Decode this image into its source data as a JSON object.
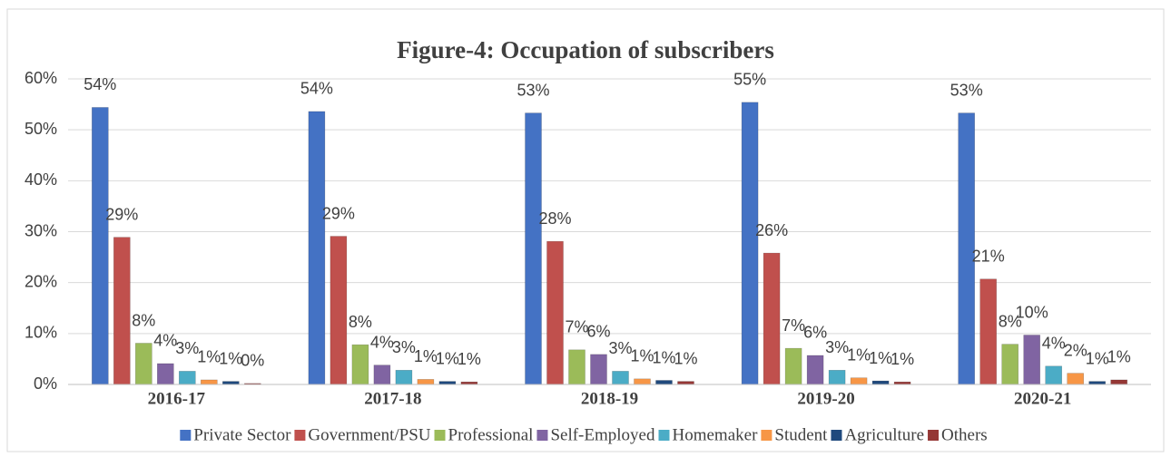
{
  "chart_data": {
    "type": "bar",
    "title": "Figure-4: Occupation of subscribers",
    "categories": [
      "2016-17",
      "2017-18",
      "2018-19",
      "2019-20",
      "2020-21"
    ],
    "series": [
      {
        "name": "Private Sector",
        "color": "#4472c4",
        "values": [
          54.4,
          53.6,
          53.3,
          55.4,
          53.3
        ],
        "value_labels": [
          "54%",
          "54%",
          "53%",
          "55%",
          "53%"
        ]
      },
      {
        "name": "Government/PSU",
        "color": "#c0504d",
        "values": [
          28.9,
          29.1,
          28.1,
          25.8,
          20.7
        ],
        "value_labels": [
          "29%",
          "29%",
          "28%",
          "26%",
          "21%"
        ]
      },
      {
        "name": "Professional",
        "color": "#9bbb59",
        "values": [
          8.1,
          7.8,
          6.8,
          7.1,
          7.9
        ],
        "value_labels": [
          "8%",
          "8%",
          "7%",
          "7%",
          "8%"
        ]
      },
      {
        "name": "Self-Employed",
        "color": "#8064a2",
        "values": [
          4.1,
          3.8,
          5.9,
          5.7,
          9.7
        ],
        "value_labels": [
          "4%",
          "4%",
          "6%",
          "6%",
          "10%"
        ]
      },
      {
        "name": "Homemaker",
        "color": "#4bacc6",
        "values": [
          2.6,
          2.8,
          2.6,
          2.8,
          3.6
        ],
        "value_labels": [
          "3%",
          "3%",
          "3%",
          "3%",
          "4%"
        ]
      },
      {
        "name": "Student",
        "color": "#f79646",
        "values": [
          0.9,
          1.0,
          1.1,
          1.3,
          2.2
        ],
        "value_labels": [
          "1%",
          "1%",
          "1%",
          "1%",
          "2%"
        ]
      },
      {
        "name": "Agriculture",
        "color": "#1f497d",
        "values": [
          0.6,
          0.6,
          0.8,
          0.7,
          0.6
        ],
        "value_labels": [
          "1%",
          "1%",
          "1%",
          "1%",
          "1%"
        ]
      },
      {
        "name": "Others",
        "color": "#953735",
        "values": [
          0.2,
          0.5,
          0.6,
          0.5,
          0.9
        ],
        "value_labels": [
          "0%",
          "1%",
          "1%",
          "1%",
          "1%"
        ]
      }
    ],
    "ylim": [
      0,
      60
    ],
    "yticks": [
      {
        "value": 0,
        "label": "0%"
      },
      {
        "value": 10,
        "label": "10%"
      },
      {
        "value": 20,
        "label": "20%"
      },
      {
        "value": 30,
        "label": "30%"
      },
      {
        "value": 40,
        "label": "40%"
      },
      {
        "value": 50,
        "label": "50%"
      },
      {
        "value": 60,
        "label": "60%"
      }
    ],
    "grid": true,
    "legend": "bottom"
  }
}
